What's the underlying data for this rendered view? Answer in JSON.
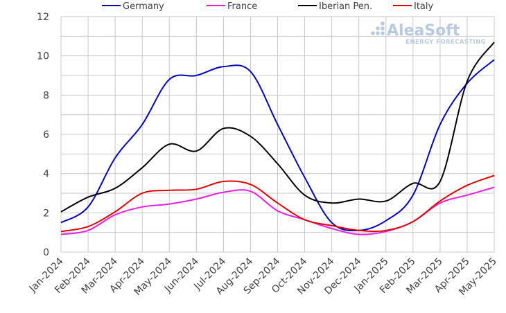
{
  "chart_data": {
    "type": "line",
    "categories": [
      "Jan-2024",
      "Feb-2024",
      "Mar-2024",
      "Apr-2024",
      "May-2024",
      "Jun-2024",
      "Jul-2024",
      "Aug-2024",
      "Sep-2024",
      "Oct-2024",
      "Nov-2024",
      "Dec-2024",
      "Jan-2025",
      "Feb-2025",
      "Mar-2025",
      "Apr-2025",
      "May-2025"
    ],
    "ylim": [
      0,
      12
    ],
    "yticks": [
      "0",
      "2",
      "4",
      "6",
      "8",
      "10",
      "12"
    ],
    "series": [
      {
        "name": "Germany",
        "color": "#0000bf",
        "values": [
          1.5,
          2.3,
          4.8,
          6.5,
          8.8,
          9.0,
          9.45,
          9.2,
          6.5,
          3.8,
          1.5,
          1.1,
          1.6,
          2.9,
          6.5,
          8.6,
          9.8
        ]
      },
      {
        "name": "France",
        "color": "#e61ee6",
        "values": [
          0.9,
          1.1,
          1.9,
          2.3,
          2.45,
          2.7,
          3.05,
          3.1,
          2.1,
          1.65,
          1.2,
          0.9,
          1.05,
          1.55,
          2.5,
          2.9,
          3.3
        ]
      },
      {
        "name": "Iberian Pen.",
        "color": "#000000",
        "values": [
          2.05,
          2.8,
          3.25,
          4.3,
          5.5,
          5.15,
          6.3,
          5.9,
          4.5,
          2.9,
          2.5,
          2.7,
          2.6,
          3.5,
          3.6,
          8.7,
          10.7
        ]
      },
      {
        "name": "Italy",
        "color": "#e00000",
        "values": [
          1.05,
          1.3,
          2.05,
          3.0,
          3.15,
          3.2,
          3.6,
          3.45,
          2.5,
          1.65,
          1.35,
          1.1,
          1.1,
          1.55,
          2.6,
          3.4,
          3.9
        ]
      }
    ]
  },
  "watermark": {
    "name": "AleaSoft",
    "tagline": "ENERGY FORECASTING"
  }
}
